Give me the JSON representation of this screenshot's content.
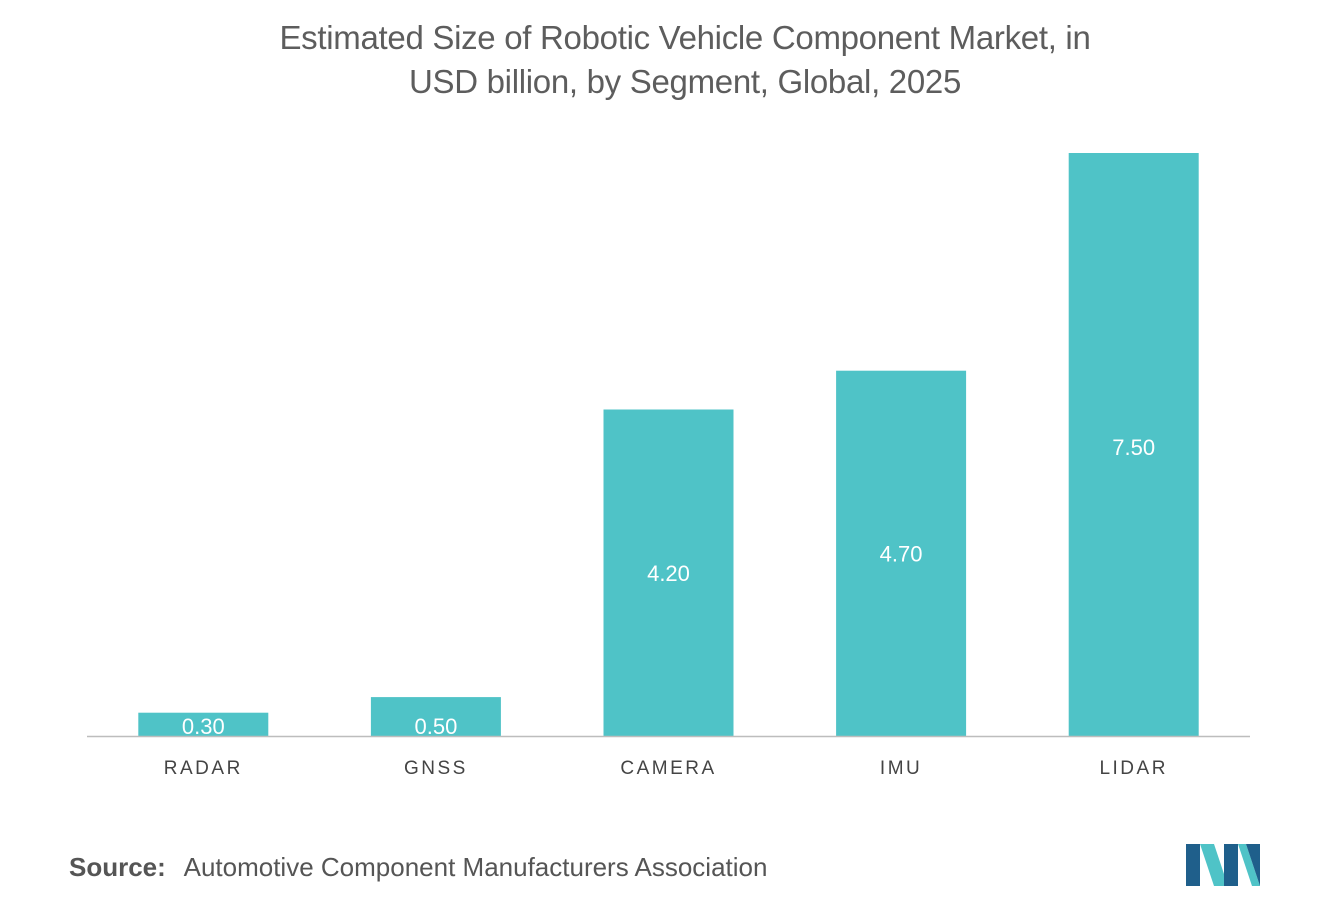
{
  "title_line1": "Estimated Size of Robotic Vehicle Component Market, in",
  "title_line2": "USD billion, by Segment, Global, 2025",
  "source_label": "Source:",
  "source_text": "Automotive Component Manufacturers Association",
  "colors": {
    "bar": "#4fc3c7",
    "axis": "#bdbdbd",
    "label": "#444444",
    "value_label": "#ffffff",
    "logo_dark": "#1f5f8b",
    "logo_light": "#4fc3c7"
  },
  "chart_data": {
    "type": "bar",
    "categories": [
      "RADAR",
      "GNSS",
      "CAMERA",
      "IMU",
      "LIDAR"
    ],
    "values": [
      0.3,
      0.5,
      4.2,
      4.7,
      7.5
    ],
    "value_labels": [
      "0.30",
      "0.50",
      "4.20",
      "4.70",
      "7.50"
    ],
    "title": "Estimated Size of Robotic Vehicle Component Market, in USD billion, by Segment, Global, 2025",
    "xlabel": "",
    "ylabel": "",
    "ylim": [
      0,
      7.5
    ],
    "grid": false,
    "legend": "none"
  }
}
